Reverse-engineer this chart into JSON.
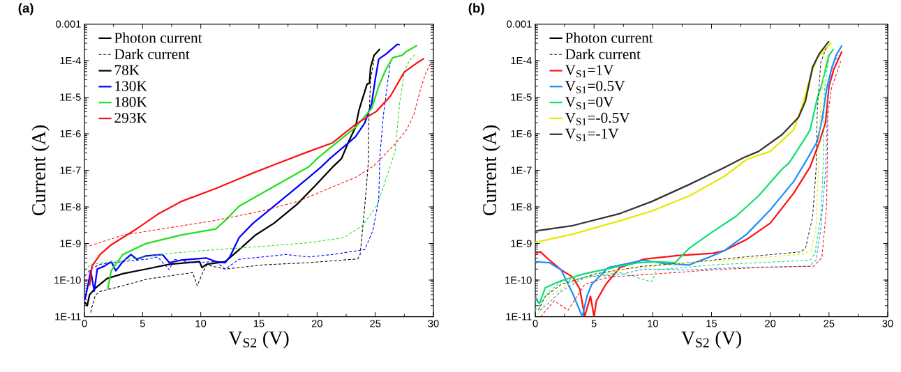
{
  "chart_data": [
    {
      "type": "line",
      "title": "(a)",
      "xlabel": "V$_{S2}$ (V)",
      "ylabel": "Current (A)",
      "log": "y",
      "legend": "top left",
      "marker": "none",
      "annotations": [
        "Photon current",
        "Dark current"
      ],
      "xlim": [
        0,
        30
      ],
      "xticks": [
        0,
        5,
        10,
        15,
        20,
        25,
        30
      ],
      "ylim": [
        1e-11,
        0.001
      ],
      "yticks": [
        {
          "value": 1e-11,
          "label": "1E-11"
        },
        {
          "value": 1e-10,
          "label": "1E-10"
        },
        {
          "value": 1e-09,
          "label": "1E-9"
        },
        {
          "value": 1e-08,
          "label": "1E-8"
        },
        {
          "value": 1e-07,
          "label": "1E-7"
        },
        {
          "value": 1e-06,
          "label": "1E-6"
        },
        {
          "value": 1e-05,
          "label": "1E-5"
        },
        {
          "value": 0.0001,
          "label": "1E-4"
        },
        {
          "value": 0.001,
          "label": "0.001"
        }
      ],
      "series": [
        {
          "name": "78K",
          "color": "#000000",
          "line_style": "solid",
          "x": [
            0.04,
            0.24,
            0.44,
            0.94,
            1.94,
            3.3,
            5.3,
            7.3,
            9.9,
            10.1,
            10.5,
            12.1,
            13.3,
            14.7,
            16.3,
            18.3,
            19.9,
            21.3,
            22.1,
            22.7,
            23.3,
            23.6,
            23.9,
            24.3,
            24.5,
            24.6,
            24.9,
            25.4
          ],
          "values": [
            2.5e-11,
            2e-11,
            4e-11,
            6e-11,
            1.1e-10,
            1.5e-10,
            2e-10,
            2.7e-10,
            3.2e-10,
            2.2e-10,
            2.7e-10,
            3.2e-10,
            6.8e-10,
            1.7e-09,
            3.6e-09,
            1.2e-08,
            4e-08,
            1.2e-07,
            2.1e-07,
            6e-07,
            1.5e-06,
            4.4e-06,
            9e-06,
            2.3e-05,
            2.4e-05,
            6.6e-05,
            0.00014,
            0.00021
          ]
        },
        {
          "color": "#000000",
          "line_style": "dashed",
          "x": [
            0.54,
            0.64,
            0.94,
            1.34,
            3.3,
            5.3,
            7.3,
            9.3,
            9.7,
            10.2,
            10.5,
            12.1,
            15.3,
            19.3,
            23.5,
            23.7,
            24.1,
            24.4,
            24.45,
            24.6,
            24.9
          ],
          "values": [
            1.3e-11,
            1.8e-11,
            3.9e-11,
            4.9e-11,
            7e-11,
            1.05e-10,
            1.3e-10,
            1.6e-10,
            7e-11,
            1.7e-10,
            2.6e-10,
            2e-10,
            2.6e-10,
            3e-10,
            3.8e-10,
            5e-10,
            1.05e-08,
            1.6e-07,
            2e-06,
            3.1e-05,
            0.000105
          ]
        },
        {
          "name": "130K",
          "color": "#0000ff",
          "line_style": "solid",
          "x": [
            0.04,
            0.34,
            0.54,
            0.84,
            1.1,
            1.7,
            2.3,
            2.7,
            3.3,
            4.0,
            4.5,
            5.3,
            6.7,
            7.3,
            8.3,
            10.5,
            11.3,
            12.1,
            12.5,
            13.3,
            14.5,
            16.3,
            18.3,
            20.3,
            21.1,
            23.3,
            24.1,
            24.7,
            25.0,
            25.3,
            25.9,
            26.9,
            27.1
          ],
          "values": [
            2.9e-11,
            8.3e-11,
            1.8e-10,
            5e-11,
            2e-10,
            2.4e-10,
            3.2e-10,
            1.8e-10,
            3.2e-10,
            5e-10,
            3.7e-10,
            4.6e-10,
            5e-10,
            3e-10,
            3.5e-10,
            4e-10,
            3.2e-10,
            3e-10,
            4.3e-10,
            1.45e-09,
            3.6e-09,
            1.05e-08,
            3.5e-08,
            1.2e-07,
            2.1e-07,
            8.3e-07,
            2e-06,
            6.9e-06,
            3.1e-05,
            0.00011,
            0.00015,
            0.00028,
            0.00027
          ]
        },
        {
          "color": "#0000ff",
          "line_style": "dashed",
          "x": [
            0.04,
            0.54,
            1.34,
            3.3,
            5.3,
            6.3,
            7.3,
            7.7,
            9.3,
            11.3,
            12.1,
            13.3,
            17.3,
            19.3,
            21.3,
            24.1,
            24.8,
            25.3,
            25.4,
            25.7,
            26.1,
            26.3
          ],
          "values": [
            1.3e-10,
            2e-10,
            2.7e-10,
            3.2e-10,
            3.7e-10,
            4.3e-10,
            1.9e-10,
            3.7e-10,
            3e-10,
            3.2e-10,
            2e-10,
            3.7e-10,
            5e-10,
            4.3e-10,
            5e-10,
            6.8e-10,
            2.3e-09,
            1.6e-08,
            2.5e-07,
            3.2e-06,
            3.1e-05,
            8.9e-05
          ]
        },
        {
          "name": "180K",
          "color": "#22e022",
          "line_style": "solid",
          "x": [
            2.0,
            2.3,
            3.3,
            5.3,
            8.3,
            11.3,
            12.3,
            13.3,
            15.3,
            17.3,
            19.3,
            20.0,
            21.3,
            23.3,
            24.7,
            25.3,
            25.9,
            26.5,
            27.3,
            27.7,
            28.6
          ],
          "values": [
            5.6e-11,
            1.8e-10,
            5e-10,
            1e-09,
            1.7e-09,
            2.5e-09,
            4.9e-09,
            1.05e-08,
            2.4e-08,
            5.5e-08,
            1.26e-07,
            2.1e-07,
            4.6e-07,
            1.5e-06,
            5e-06,
            2e-05,
            5.6e-05,
            0.00012,
            0.00014,
            0.00018,
            0.00026
          ]
        },
        {
          "color": "#22e022",
          "line_style": "dashed",
          "x": [
            0.04,
            0.54,
            3.3,
            7.3,
            11.3,
            15.3,
            19.3,
            22.3,
            23.9,
            25.1,
            25.7,
            26.5,
            26.7,
            27.1,
            27.5,
            27.9,
            28.5
          ],
          "values": [
            1.8e-10,
            2.7e-10,
            3.5e-10,
            5.4e-10,
            6.8e-10,
            8.4e-10,
            1.05e-09,
            1.45e-09,
            3.1e-09,
            1.05e-08,
            3.5e-08,
            2.1e-07,
            3.3e-07,
            6.9e-06,
            4.9e-05,
            9.6e-05,
            0.00016
          ]
        },
        {
          "name": "293K",
          "color": "#ff1010",
          "line_style": "solid",
          "x": [
            0.44,
            0.64,
            1.34,
            2.3,
            4.3,
            6.3,
            8.3,
            11.3,
            14.3,
            16.5,
            19.3,
            21.3,
            23.3,
            25.1,
            26.3,
            27.5,
            28.5,
            29.2
          ],
          "values": [
            7e-11,
            2.4e-10,
            5e-10,
            9.2e-10,
            2.3e-09,
            6.3e-09,
            1.4e-08,
            3.2e-08,
            8e-08,
            1.5e-07,
            3.3e-07,
            5.6e-07,
            1.8e-06,
            4.1e-06,
            1.07e-05,
            4.9e-05,
            8.3e-05,
            0.000115
          ]
        },
        {
          "color": "#ff1010",
          "line_style": "dashed",
          "x": [
            0.44,
            1.3,
            3.3,
            7.3,
            11.3,
            15.3,
            18.3,
            21.3,
            23.3,
            24.9,
            26.7,
            27.7,
            28.3,
            28.9,
            29.3,
            29.8
          ],
          "values": [
            8.7e-10,
            1.05e-09,
            1.7e-09,
            2.7e-09,
            4.3e-09,
            7.8e-09,
            1.4e-08,
            3.5e-08,
            6.4e-08,
            1.35e-07,
            5.2e-07,
            1.3e-06,
            3.2e-06,
            1.7e-05,
            4.2e-05,
            9e-05
          ]
        }
      ]
    },
    {
      "type": "line",
      "title": "(b)",
      "xlabel": "V$_{S2}$ (V)",
      "ylabel": "Current (A)",
      "log": "y",
      "legend": "top left",
      "marker": "none",
      "annotations": [
        "Photon current",
        "Dark current"
      ],
      "xlim": [
        0,
        30
      ],
      "xticks": [
        0,
        5,
        10,
        15,
        20,
        25,
        30
      ],
      "ylim": [
        1e-11,
        0.001
      ],
      "yticks": [
        {
          "value": 1e-11,
          "label": "1E-11"
        },
        {
          "value": 1e-10,
          "label": "1E-10"
        },
        {
          "value": 1e-09,
          "label": "1E-9"
        },
        {
          "value": 1e-08,
          "label": "1E-8"
        },
        {
          "value": 1e-07,
          "label": "1E-7"
        },
        {
          "value": 1e-06,
          "label": "1E-6"
        },
        {
          "value": 1e-05,
          "label": "1E-5"
        },
        {
          "value": 0.0001,
          "label": "1E-4"
        },
        {
          "value": 0.001,
          "label": "0.001"
        }
      ],
      "series": [
        {
          "name": "V$_{S1}$=1V",
          "color": "#ff1010",
          "line_style": "solid",
          "x": [
            0,
            0.45,
            1.2,
            2.2,
            3.2,
            3.8,
            4.2,
            4.7,
            5.0,
            5.2,
            6.0,
            7.2,
            9.2,
            12.1,
            15.1,
            16.1,
            18.0,
            20.0,
            22.0,
            23.4,
            24.2,
            24.7,
            25.0,
            25.4,
            26.1
          ],
          "values": [
            5.5e-10,
            5.9e-10,
            3.5e-10,
            1.9e-10,
            1.2e-10,
            5.6e-11,
            1e-11,
            3.6e-11,
            1e-11,
            2.7e-11,
            7.6e-11,
            2.2e-10,
            3.7e-10,
            4.7e-10,
            5.4e-10,
            6.4e-10,
            1.3e-09,
            3.6e-09,
            2.4e-08,
            1.25e-07,
            6.2e-07,
            2e-06,
            2e-05,
            5.7e-05,
            0.00018
          ]
        },
        {
          "name": "V$_{S1}$=0.5V",
          "color": "#1e8fff",
          "line_style": "solid",
          "x": [
            0,
            1.2,
            2.2,
            3.2,
            4.0,
            4.4,
            4.8,
            6.2,
            9.2,
            11.1,
            13.1,
            14.7,
            16.1,
            18.0,
            20.0,
            22.0,
            23.0,
            24.0,
            24.4,
            24.8,
            25.2,
            25.6,
            26.1
          ],
          "values": [
            3.2e-10,
            3e-10,
            1.9e-10,
            4.2e-11,
            1e-11,
            3.6e-11,
            7.6e-11,
            2.2e-10,
            3.5e-10,
            2.8e-10,
            2.6e-10,
            4.1e-10,
            6.4e-10,
            1.8e-09,
            8.3e-09,
            5e-08,
            1.7e-07,
            6.2e-07,
            2.4e-06,
            1.7e-05,
            5.7e-05,
            0.00014,
            0.00026
          ]
        },
        {
          "name": "V$_{S1}$=0V",
          "color": "#10e070",
          "line_style": "solid",
          "x": [
            0,
            0.36,
            0.85,
            2.2,
            4.2,
            7.2,
            8.8,
            10.3,
            11.9,
            13.1,
            15.1,
            17.1,
            19.0,
            21.0,
            21.6,
            22.8,
            23.4,
            24.0,
            24.4,
            24.7,
            25.0,
            25.4
          ],
          "values": [
            3.1e-11,
            2.3e-11,
            6.2e-11,
            9.6e-11,
            1.5e-10,
            2.4e-10,
            3e-10,
            3.2e-10,
            3e-10,
            7.4e-10,
            2.1e-09,
            5.6e-09,
            2e-08,
            1.08e-07,
            1.6e-07,
            6.2e-07,
            1.3e-06,
            9.3e-06,
            2.3e-05,
            5.7e-05,
            0.00014,
            0.00021
          ]
        },
        {
          "name": "V$_{S1}$=-0.5V",
          "color": "#e8e800",
          "line_style": "solid",
          "x": [
            0,
            3.2,
            7.2,
            9.9,
            13.1,
            16.1,
            18.0,
            20.0,
            22.0,
            22.8,
            23.4,
            24.0,
            25.2
          ],
          "values": [
            1.07e-09,
            1.8e-09,
            4.2e-09,
            7.7e-09,
            2e-08,
            6.9e-08,
            2e-07,
            3.3e-07,
            1.3e-06,
            6.9e-06,
            3.6e-05,
            0.00012,
            0.00031
          ]
        },
        {
          "name": "V$_{S1}$=-1V",
          "color": "#333333",
          "line_style": "solid",
          "x": [
            0,
            3.2,
            7.2,
            9.9,
            13.1,
            16.1,
            17.7,
            19.0,
            21.0,
            22.4,
            23.0,
            23.6,
            24.2,
            25.0
          ],
          "values": [
            2.2e-09,
            3.1e-09,
            6.6e-09,
            1.4e-08,
            4.1e-08,
            1.2e-07,
            2.2e-07,
            3.3e-07,
            9.5e-07,
            2.8e-06,
            7.9e-06,
            6.6e-05,
            0.00016,
            0.00034
          ]
        },
        {
          "color": "#333333",
          "line_style": "dashed",
          "x": [
            0.26,
            0.85,
            2.2,
            5.2,
            9.2,
            13.1,
            17.1,
            22.6,
            23.0,
            23.6,
            23.9,
            24.0,
            24.3,
            24.8
          ],
          "values": [
            1.5e-11,
            3.6e-11,
            7.6e-11,
            1.5e-10,
            2.4e-10,
            3e-10,
            4.1e-10,
            5.9e-10,
            7.4e-10,
            5.3e-09,
            1.08e-07,
            4.4e-06,
            8.9e-05,
            0.00024
          ]
        },
        {
          "color": "#e8e800",
          "line_style": "dashed",
          "x": [
            0.26,
            1.2,
            3.2,
            7.2,
            13.1,
            19.0,
            22.6,
            23.5,
            23.9,
            24.1,
            24.3,
            24.6,
            25.0
          ],
          "values": [
            1.2e-11,
            3.6e-11,
            9e-11,
            1.9e-10,
            3e-10,
            4.1e-10,
            5e-10,
            6.4e-10,
            2.9e-09,
            1e-07,
            6.9e-06,
            5.7e-05,
            0.00022
          ]
        },
        {
          "color": "#10e070",
          "line_style": "dashed",
          "x": [
            0,
            1.2,
            2.2,
            4.2,
            7.2,
            9.9,
            10.3,
            15.1,
            19.0,
            23.4,
            23.8,
            24.3,
            24.5,
            24.6,
            25.0
          ],
          "values": [
            1.5e-11,
            4.9e-11,
            9e-11,
            1.2e-10,
            1.6e-10,
            9e-11,
            1.9e-10,
            2.6e-10,
            3e-10,
            3.5e-10,
            5.4e-10,
            5.3e-09,
            1.25e-07,
            1.5e-05,
            0.00014
          ]
        },
        {
          "color": "#1e8fff",
          "line_style": "dashed",
          "x": [
            0.05,
            0.45,
            2.2,
            4.2,
            7.2,
            9.2,
            13.1,
            17.1,
            23.3,
            23.9,
            24.3,
            24.7,
            24.9,
            25.2,
            25.8
          ],
          "values": [
            3.6e-11,
            1.5e-11,
            4.9e-11,
            1.2e-10,
            1.4e-10,
            2e-10,
            1.9e-10,
            2.2e-10,
            2.4e-10,
            3.5e-10,
            2.5e-09,
            9.3e-08,
            9.3e-06,
            6.6e-05,
            0.00014
          ]
        },
        {
          "color": "#ff1010",
          "line_style": "dashed",
          "x": [
            0.45,
            1.6,
            2.8,
            4.2,
            6.2,
            9.2,
            15.1,
            19.0,
            23.7,
            24.4,
            24.8,
            24.9,
            25.2,
            26.0
          ],
          "values": [
            1e-11,
            2.7e-11,
            1.5e-11,
            7.6e-11,
            1.2e-10,
            1.4e-10,
            1.9e-10,
            2.2e-10,
            2.4e-10,
            4.1e-10,
            1.1e-08,
            3.2e-06,
            1.7e-05,
            9.6e-05
          ]
        }
      ]
    }
  ]
}
